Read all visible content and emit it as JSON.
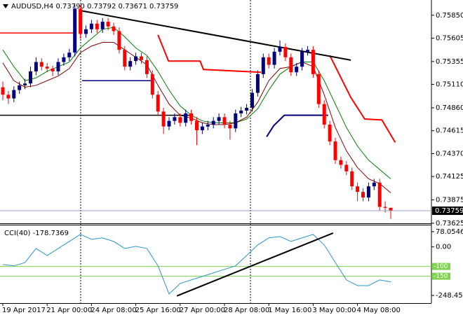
{
  "chart_data": {
    "type": "candlestick",
    "title": "AUDUSD,H4 0.73790 0.73792 0.73671 0.73759",
    "up_color": "#000080",
    "down_color": "#ff0000",
    "ohlc": [
      [
        0.7508,
        0.7514,
        0.7494,
        0.75
      ],
      [
        0.75,
        0.7504,
        0.749,
        0.7496
      ],
      [
        0.7496,
        0.7509,
        0.7492,
        0.7505
      ],
      [
        0.7505,
        0.7514,
        0.7501,
        0.751
      ],
      [
        0.751,
        0.7517,
        0.7506,
        0.7512
      ],
      [
        0.7512,
        0.753,
        0.7508,
        0.7525
      ],
      [
        0.7525,
        0.754,
        0.7521,
        0.7535
      ],
      [
        0.7535,
        0.7539,
        0.7526,
        0.753
      ],
      [
        0.753,
        0.7534,
        0.7524,
        0.7528
      ],
      [
        0.7528,
        0.7531,
        0.752,
        0.7525
      ],
      [
        0.7525,
        0.7539,
        0.7521,
        0.7535
      ],
      [
        0.7535,
        0.7544,
        0.7531,
        0.754
      ],
      [
        0.754,
        0.7549,
        0.7536,
        0.7545
      ],
      [
        0.7545,
        0.7596,
        0.7541,
        0.7592
      ],
      [
        0.7592,
        0.7596,
        0.756,
        0.7565
      ],
      [
        0.7565,
        0.7574,
        0.7561,
        0.757
      ],
      [
        0.757,
        0.758,
        0.7566,
        0.7576
      ],
      [
        0.7576,
        0.758,
        0.7566,
        0.757
      ],
      [
        0.757,
        0.7582,
        0.7566,
        0.7578
      ],
      [
        0.7578,
        0.7582,
        0.7569,
        0.7573
      ],
      [
        0.7573,
        0.7577,
        0.7564,
        0.7568
      ],
      [
        0.7568,
        0.7572,
        0.7544,
        0.7548
      ],
      [
        0.7548,
        0.7552,
        0.7526,
        0.753
      ],
      [
        0.753,
        0.754,
        0.7526,
        0.7536
      ],
      [
        0.7536,
        0.7545,
        0.7532,
        0.7541
      ],
      [
        0.7541,
        0.7545,
        0.7533,
        0.7537
      ],
      [
        0.7537,
        0.7541,
        0.7518,
        0.7522
      ],
      [
        0.7522,
        0.7526,
        0.7496,
        0.75
      ],
      [
        0.75,
        0.7504,
        0.7478,
        0.7482
      ],
      [
        0.7482,
        0.7486,
        0.7458,
        0.7466
      ],
      [
        0.7466,
        0.7476,
        0.7462,
        0.7472
      ],
      [
        0.7472,
        0.748,
        0.7468,
        0.7476
      ],
      [
        0.7476,
        0.748,
        0.7466,
        0.747
      ],
      [
        0.747,
        0.7484,
        0.7466,
        0.748
      ],
      [
        0.748,
        0.7484,
        0.7468,
        0.7472
      ],
      [
        0.7472,
        0.7476,
        0.7446,
        0.7462
      ],
      [
        0.7462,
        0.747,
        0.7458,
        0.7466
      ],
      [
        0.7466,
        0.7472,
        0.7462,
        0.7468
      ],
      [
        0.7468,
        0.7476,
        0.7464,
        0.7472
      ],
      [
        0.7472,
        0.748,
        0.7468,
        0.7476
      ],
      [
        0.7476,
        0.748,
        0.7464,
        0.7468
      ],
      [
        0.7468,
        0.7472,
        0.7452,
        0.7464
      ],
      [
        0.7464,
        0.7484,
        0.746,
        0.748
      ],
      [
        0.748,
        0.7487,
        0.7476,
        0.7483
      ],
      [
        0.7483,
        0.749,
        0.7479,
        0.7486
      ],
      [
        0.7486,
        0.7506,
        0.7482,
        0.7502
      ],
      [
        0.7502,
        0.7526,
        0.7498,
        0.7522
      ],
      [
        0.7522,
        0.7544,
        0.7518,
        0.754
      ],
      [
        0.754,
        0.7544,
        0.7528,
        0.7532
      ],
      [
        0.7532,
        0.755,
        0.7528,
        0.7546
      ],
      [
        0.7546,
        0.7558,
        0.7542,
        0.7551
      ],
      [
        0.7551,
        0.7555,
        0.7536,
        0.754
      ],
      [
        0.754,
        0.7544,
        0.752,
        0.7524
      ],
      [
        0.7524,
        0.7534,
        0.752,
        0.753
      ],
      [
        0.753,
        0.755,
        0.7526,
        0.7546
      ],
      [
        0.7546,
        0.7552,
        0.7542,
        0.7548
      ],
      [
        0.7548,
        0.7552,
        0.7518,
        0.7522
      ],
      [
        0.7522,
        0.7526,
        0.7486,
        0.749
      ],
      [
        0.749,
        0.7494,
        0.7464,
        0.7468
      ],
      [
        0.7468,
        0.7472,
        0.7446,
        0.745
      ],
      [
        0.745,
        0.7454,
        0.7426,
        0.743
      ],
      [
        0.743,
        0.7434,
        0.7421,
        0.7425
      ],
      [
        0.7425,
        0.7429,
        0.7414,
        0.7418
      ],
      [
        0.7418,
        0.7422,
        0.7398,
        0.7402
      ],
      [
        0.7402,
        0.7406,
        0.7386,
        0.7396
      ],
      [
        0.7396,
        0.74,
        0.7386,
        0.739
      ],
      [
        0.739,
        0.7406,
        0.7386,
        0.7402
      ],
      [
        0.7402,
        0.741,
        0.7398,
        0.7406
      ],
      [
        0.7406,
        0.741,
        0.7376,
        0.738
      ],
      [
        0.738,
        0.7386,
        0.7374,
        0.7379
      ],
      [
        0.7379,
        0.73792,
        0.73671,
        0.73759
      ]
    ],
    "ylim": [
      0.73632,
      0.75998
    ],
    "yticks": [
      {
        "value": 0.7585,
        "label": "0.75850"
      },
      0.75605,
      0.75355,
      {
        "value": 0.7511,
        "label": "0.75110"
      },
      {
        "value": 0.7486,
        "label": "0.74860"
      },
      0.74615,
      {
        "value": 0.7437,
        "label": "0.74370"
      },
      0.74125,
      0.73875,
      0.73625
    ],
    "xticks": [
      {
        "value": 0,
        "label": "19 Apr 2017"
      },
      {
        "value": 8,
        "label": "21 Apr 00:00"
      },
      {
        "value": 16,
        "label": "24 Apr 08:00"
      },
      {
        "value": 24,
        "label": "25 Apr 16:00"
      },
      {
        "value": 32,
        "label": "27 Apr 00:00"
      },
      {
        "value": 40,
        "label": "28 Apr 08:00"
      },
      {
        "value": 48,
        "label": "1 May 16:00"
      },
      {
        "value": 56,
        "label": "3 May 00:00"
      },
      {
        "value": 64,
        "label": "4 May 08:00"
      }
    ],
    "ma_x": [
      0,
      2,
      4,
      6,
      8,
      10,
      12,
      14,
      16,
      18,
      20,
      22,
      24,
      26,
      28,
      30,
      32,
      34,
      36,
      38,
      40,
      42,
      44,
      46,
      48,
      50,
      52,
      54,
      56,
      58,
      60,
      62,
      64,
      66,
      68,
      70
    ],
    "series": [
      {
        "color": "#008000",
        "values": [
          0.7548,
          0.753,
          0.7515,
          0.7518,
          0.7525,
          0.753,
          0.7535,
          0.755,
          0.756,
          0.757,
          0.7572,
          0.7562,
          0.755,
          0.7542,
          0.7525,
          0.7505,
          0.7488,
          0.7478,
          0.7472,
          0.747,
          0.747,
          0.747,
          0.7474,
          0.7485,
          0.7505,
          0.7522,
          0.753,
          0.7535,
          0.7535,
          0.7515,
          0.749,
          0.7465,
          0.7445,
          0.743,
          0.742,
          0.741
        ]
      },
      {
        "color": "#8b0000",
        "values": [
          0.7534,
          0.7515,
          0.7508,
          0.751,
          0.7515,
          0.752,
          0.7528,
          0.7545,
          0.7552,
          0.7556,
          0.7556,
          0.7548,
          0.754,
          0.7532,
          0.751,
          0.749,
          0.7478,
          0.7475,
          0.747,
          0.7468,
          0.7468,
          0.747,
          0.7476,
          0.7492,
          0.7515,
          0.7528,
          0.753,
          0.7535,
          0.753,
          0.75,
          0.7465,
          0.744,
          0.7422,
          0.741,
          0.7405,
          0.7395
        ]
      }
    ],
    "overlays": [
      {
        "color": "#ff0000",
        "width": 1.5,
        "points": [
          [
            -0.5,
            0.7566
          ],
          [
            13,
            0.7566
          ]
        ]
      },
      {
        "color": "#000080",
        "width": 1.5,
        "points": [
          [
            14.3,
            0.7515
          ],
          [
            27.1,
            0.7515
          ]
        ]
      },
      {
        "color": "#000000",
        "width": 1.5,
        "points": [
          [
            -0.5,
            0.7478
          ],
          [
            34,
            0.7478
          ]
        ]
      },
      {
        "color": "#ff0000",
        "width": 2,
        "points": [
          [
            28,
            0.7564
          ],
          [
            29.9,
            0.7536
          ],
          [
            35.6,
            0.7536
          ],
          [
            36.2,
            0.7527
          ],
          [
            46.6,
            0.7524
          ]
        ]
      },
      {
        "color": "#ff0000",
        "width": 2,
        "points": [
          [
            59,
            0.7542
          ],
          [
            62.8,
            0.7497
          ],
          [
            65.3,
            0.7474
          ],
          [
            68.4,
            0.7473
          ],
          [
            70.8,
            0.7449
          ]
        ]
      },
      {
        "color": "#000080",
        "width": 2,
        "points": [
          [
            47.6,
            0.7455
          ],
          [
            48.9,
            0.7467
          ],
          [
            50.8,
            0.7478
          ],
          [
            58.7,
            0.7478
          ]
        ]
      },
      {
        "color": "#000000",
        "width": 2,
        "points": [
          [
            14,
            0.759
          ],
          [
            62.8,
            0.7537
          ]
        ]
      }
    ],
    "indicator": {
      "title": "CCI(40) -178.7369",
      "color": "#2a96c8",
      "values": [
        -90,
        -97,
        -80,
        -8,
        -44,
        -8,
        28,
        64,
        39,
        46,
        28,
        -8,
        3,
        -8,
        -97,
        -241,
        -187,
        -169,
        -151,
        -133,
        -115,
        -97,
        -44,
        10,
        46,
        53,
        28,
        46,
        64,
        10,
        -80,
        -169,
        -198,
        -198,
        -169,
        -178.7369
      ],
      "ylim": [
        -284,
        110
      ],
      "yticks": [
        78.0546,
        {
          "value": 0,
          "label": "0.00"
        },
        -248.4535
      ],
      "levels": [
        -100,
        -150
      ],
      "level_color": "#7fd34e",
      "trendline": [
        [
          31.4,
          -251
        ],
        [
          59.6,
          71
        ]
      ]
    }
  }
}
